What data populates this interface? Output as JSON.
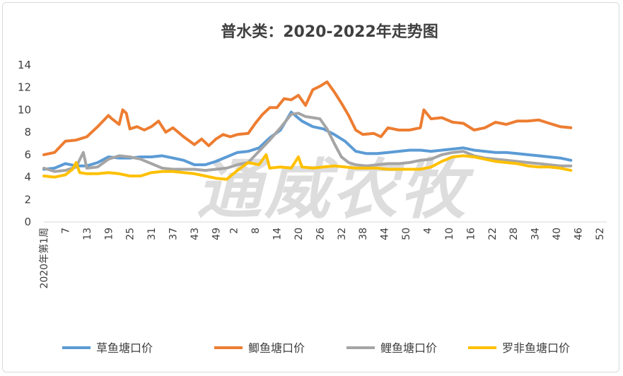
{
  "watermark": "通威农牧",
  "chart_data": {
    "type": "line",
    "title": "普水类：2020-2022年走势图",
    "ylim": [
      0,
      14
    ],
    "yticks": [
      0,
      2,
      4,
      6,
      8,
      10,
      12,
      14
    ],
    "x_start_label": "2020年第1周",
    "x_tick_labels": [
      "7",
      "13",
      "19",
      "25",
      "31",
      "37",
      "43",
      "49",
      "2",
      "8",
      "14",
      "20",
      "26",
      "32",
      "38",
      "44",
      "50",
      "4",
      "10",
      "16",
      "22",
      "28",
      "34",
      "40",
      "46",
      "52"
    ],
    "x_tick_positions": [
      7,
      13,
      19,
      25,
      31,
      37,
      43,
      49,
      54,
      60,
      66,
      72,
      78,
      84,
      90,
      96,
      102,
      108,
      114,
      120,
      126,
      132,
      138,
      144,
      150,
      156
    ],
    "x_range": [
      1,
      158
    ],
    "grid": false,
    "legend_position": "bottom",
    "series": [
      {
        "name": "草鱼塘口价",
        "color": "#5B9BD5",
        "x": [
          1,
          4,
          7,
          10,
          13,
          16,
          19,
          22,
          25,
          28,
          31,
          34,
          37,
          40,
          43,
          46,
          49,
          52,
          55,
          58,
          61,
          64,
          67,
          70,
          73,
          76,
          79,
          82,
          85,
          88,
          91,
          94,
          97,
          100,
          103,
          106,
          109,
          112,
          115,
          118,
          121,
          124,
          127,
          130,
          133,
          136,
          139,
          142,
          145,
          148
        ],
        "values": [
          4.7,
          4.8,
          5.2,
          5.0,
          5.0,
          5.3,
          5.8,
          5.7,
          5.7,
          5.8,
          5.8,
          5.9,
          5.7,
          5.5,
          5.1,
          5.1,
          5.4,
          5.8,
          6.2,
          6.3,
          6.6,
          7.5,
          8.2,
          9.8,
          9.0,
          8.5,
          8.3,
          7.8,
          7.2,
          6.3,
          6.1,
          6.1,
          6.2,
          6.3,
          6.4,
          6.4,
          6.3,
          6.4,
          6.5,
          6.6,
          6.4,
          6.3,
          6.2,
          6.2,
          6.1,
          6.0,
          5.9,
          5.8,
          5.7,
          5.5
        ]
      },
      {
        "name": "鲫鱼塘口价",
        "color": "#ED7D31",
        "x": [
          1,
          4,
          7,
          10,
          13,
          16,
          19,
          20,
          22,
          23,
          24,
          25,
          27,
          29,
          31,
          33,
          35,
          37,
          40,
          43,
          45,
          47,
          49,
          51,
          53,
          55,
          58,
          60,
          62,
          64,
          66,
          68,
          70,
          72,
          74,
          76,
          78,
          80,
          82,
          84,
          86,
          88,
          90,
          93,
          95,
          97,
          100,
          103,
          106,
          107,
          109,
          112,
          115,
          118,
          121,
          124,
          127,
          130,
          133,
          136,
          139,
          142,
          145,
          148
        ],
        "values": [
          6.0,
          6.2,
          7.2,
          7.3,
          7.6,
          8.5,
          9.5,
          9.2,
          8.7,
          10.0,
          9.7,
          8.3,
          8.5,
          8.2,
          8.5,
          9.0,
          8.0,
          8.4,
          7.6,
          6.9,
          7.4,
          6.8,
          7.4,
          7.8,
          7.6,
          7.8,
          7.9,
          8.8,
          9.6,
          10.2,
          10.2,
          11.0,
          10.9,
          11.3,
          10.4,
          11.8,
          12.1,
          12.5,
          11.6,
          10.6,
          9.5,
          8.2,
          7.8,
          7.9,
          7.6,
          8.4,
          8.2,
          8.2,
          8.4,
          10.0,
          9.2,
          9.3,
          8.9,
          8.8,
          8.2,
          8.4,
          8.9,
          8.7,
          9.0,
          9.0,
          9.1,
          8.8,
          8.5,
          8.4
        ]
      },
      {
        "name": "鲤鱼塘口价",
        "color": "#A5A5A5",
        "x": [
          1,
          4,
          7,
          10,
          12,
          13,
          16,
          19,
          22,
          25,
          28,
          31,
          34,
          37,
          40,
          43,
          46,
          49,
          52,
          55,
          58,
          61,
          64,
          67,
          70,
          72,
          74,
          76,
          78,
          80,
          82,
          84,
          86,
          88,
          91,
          94,
          97,
          100,
          103,
          106,
          109,
          112,
          115,
          118,
          121,
          124,
          127,
          130,
          133,
          136,
          139,
          142,
          145,
          148
        ],
        "values": [
          4.8,
          4.5,
          4.6,
          4.9,
          6.2,
          4.8,
          4.9,
          5.6,
          5.9,
          5.8,
          5.6,
          5.2,
          4.8,
          4.7,
          4.7,
          4.7,
          4.6,
          4.7,
          4.8,
          5.1,
          5.3,
          6.3,
          7.3,
          8.4,
          9.6,
          9.7,
          9.4,
          9.3,
          9.2,
          8.3,
          7.0,
          5.8,
          5.3,
          5.1,
          5.0,
          5.1,
          5.2,
          5.2,
          5.3,
          5.5,
          5.6,
          6.0,
          6.2,
          6.3,
          5.9,
          5.7,
          5.6,
          5.5,
          5.4,
          5.3,
          5.2,
          5.1,
          5.0,
          5.0
        ]
      },
      {
        "name": "罗非鱼塘口价",
        "color": "#FFC000",
        "x": [
          1,
          4,
          7,
          9,
          10,
          11,
          13,
          16,
          19,
          22,
          25,
          28,
          31,
          34,
          37,
          40,
          43,
          46,
          49,
          52,
          55,
          58,
          61,
          63,
          64,
          67,
          70,
          72,
          73,
          76,
          79,
          82,
          85,
          88,
          91,
          94,
          97,
          100,
          103,
          106,
          109,
          112,
          115,
          118,
          121,
          124,
          127,
          130,
          133,
          136,
          139,
          142,
          145,
          148
        ],
        "values": [
          4.1,
          4.0,
          4.2,
          4.7,
          5.3,
          4.4,
          4.3,
          4.3,
          4.4,
          4.3,
          4.1,
          4.1,
          4.4,
          4.5,
          4.5,
          4.4,
          4.3,
          4.1,
          3.9,
          3.8,
          4.6,
          5.3,
          5.1,
          6.0,
          4.8,
          4.9,
          4.8,
          5.8,
          4.9,
          4.8,
          4.9,
          5.0,
          4.9,
          4.8,
          4.8,
          4.8,
          4.7,
          4.7,
          4.7,
          4.7,
          4.9,
          5.4,
          5.8,
          5.9,
          5.8,
          5.6,
          5.4,
          5.3,
          5.2,
          5.0,
          4.9,
          4.9,
          4.8,
          4.6
        ]
      }
    ]
  }
}
